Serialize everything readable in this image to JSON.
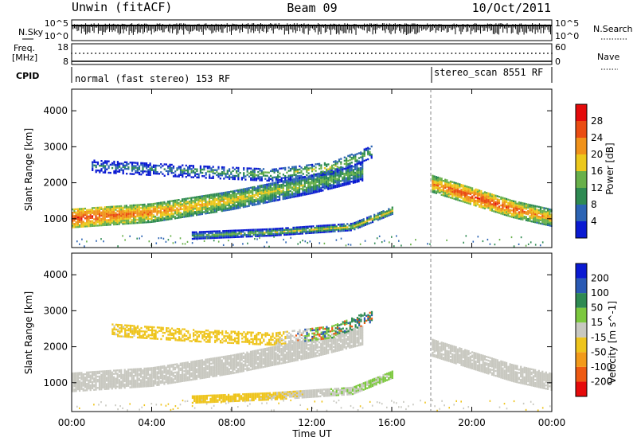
{
  "header": {
    "station": "Unwin (fitACF)",
    "beam": "Beam 09",
    "date": "10/Oct/2011"
  },
  "status_panels": {
    "nsky_label": "N.Sky",
    "nsky_ticks": [
      "10^5",
      "10^0"
    ],
    "nsearch_label": "N.Search",
    "nsearch_ticks": [
      "10^5",
      "10^0"
    ],
    "freq_label_1": "Freq.",
    "freq_label_2": "[MHz]",
    "freq_ticks": [
      "18",
      "8"
    ],
    "nave_label": "Nave",
    "nave_ticks": [
      "60",
      "0"
    ],
    "cpid_label": "CPID",
    "cpid_segments": [
      {
        "text": "normal (fast stereo) 153 RF",
        "start_hour": 0
      },
      {
        "text": "stereo_scan 8551 RF",
        "start_hour": 18
      }
    ]
  },
  "chart_data": [
    {
      "type": "heatmap",
      "quantity": "Power",
      "ylabel": "Slant Range [km]",
      "yticks": [
        1000,
        2000,
        3000,
        4000
      ],
      "ylim": [
        200,
        4600
      ],
      "xlim_hours": [
        0,
        24
      ],
      "colorbar_label": "Power [dB]",
      "colorbar_ticks": [
        "28",
        "24",
        "20",
        "16",
        "12",
        "8",
        "4"
      ],
      "colorbar_range": [
        0,
        30
      ],
      "colors": [
        "#0a1ad2",
        "#2c64b4",
        "#2e8a52",
        "#68b04a",
        "#ecc81c",
        "#f0921a",
        "#ea4c12",
        "#e40a0a"
      ],
      "structures": [
        {
          "name": "main-band",
          "hours": [
            0,
            4,
            8,
            12,
            14.5
          ],
          "range_km": [
            1050,
            1200,
            1550,
            2000,
            2350
          ],
          "power_db": [
            26,
            22,
            18,
            14,
            12
          ]
        },
        {
          "name": "upper-band",
          "hours": [
            1,
            6,
            10,
            13,
            15
          ],
          "range_km": [
            2500,
            2350,
            2250,
            2450,
            2900
          ],
          "power_db": [
            8,
            10,
            14,
            16,
            12
          ]
        },
        {
          "name": "lower-band",
          "hours": [
            6,
            10,
            14,
            16
          ],
          "range_km": [
            560,
            650,
            800,
            1250
          ],
          "power_db": [
            12,
            14,
            16,
            18
          ]
        },
        {
          "name": "evening-band",
          "hours": [
            18,
            20,
            22,
            24
          ],
          "range_km": [
            2000,
            1650,
            1300,
            1050
          ],
          "power_db": [
            22,
            26,
            24,
            20
          ]
        }
      ]
    },
    {
      "type": "heatmap",
      "quantity": "Velocity",
      "ylabel": "Slant Range [km]",
      "yticks": [
        1000,
        2000,
        3000,
        4000
      ],
      "ylim": [
        200,
        4600
      ],
      "xlim_hours": [
        0,
        24
      ],
      "colorbar_label": "Velocity [m s^-1]",
      "colorbar_ticks": [
        "200",
        "100",
        "50",
        "15",
        "-15",
        "-50",
        "-100",
        "-200"
      ],
      "colorbar_range": [
        -250,
        250
      ],
      "colors": [
        "#e60a0a",
        "#ee5a12",
        "#f29a1a",
        "#eec41c",
        "#c8c8c0",
        "#7cc83e",
        "#2e8a52",
        "#2a5ab4",
        "#0a1ad2"
      ],
      "structures": [
        {
          "name": "main-band",
          "hours": [
            0,
            4,
            8,
            12,
            14.5
          ],
          "range_km": [
            1050,
            1200,
            1550,
            2000,
            2350
          ],
          "velocity": [
            0,
            0,
            0,
            0,
            0
          ]
        },
        {
          "name": "upper-band",
          "hours": [
            2,
            6,
            10,
            13,
            15
          ],
          "range_km": [
            2500,
            2350,
            2250,
            2450,
            2900
          ],
          "velocity": [
            -40,
            -60,
            -50,
            80,
            120
          ]
        },
        {
          "name": "lower-band",
          "hours": [
            6,
            10,
            14,
            16
          ],
          "range_km": [
            560,
            650,
            800,
            1250
          ],
          "velocity": [
            -60,
            -40,
            30,
            40
          ]
        },
        {
          "name": "evening-band",
          "hours": [
            18,
            20,
            22,
            24
          ],
          "range_km": [
            2000,
            1650,
            1300,
            1050
          ],
          "velocity": [
            0,
            0,
            0,
            0
          ]
        }
      ]
    }
  ],
  "xaxis": {
    "ticks": [
      "00:00",
      "04:00",
      "08:00",
      "12:00",
      "16:00",
      "20:00",
      "00:00"
    ],
    "label": "Time UT"
  }
}
